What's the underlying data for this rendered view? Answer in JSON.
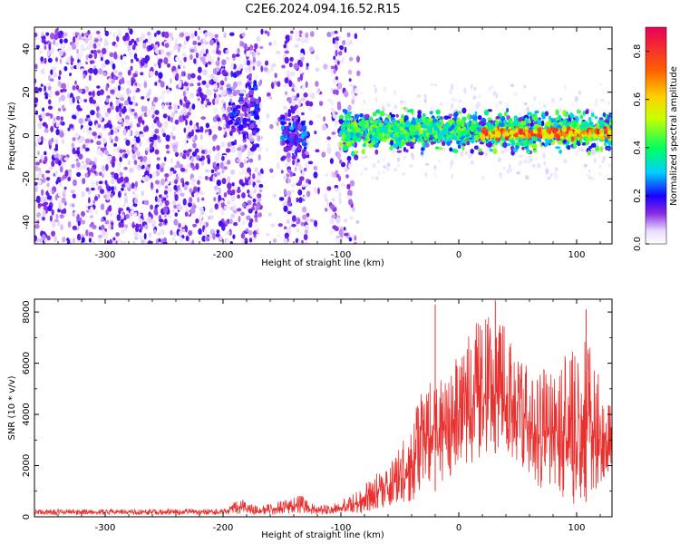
{
  "title": "C2E6.2024.094.16.52.R15",
  "chart_data": [
    {
      "type": "heatmap",
      "title": "",
      "xlabel": "Height of straight line (km)",
      "ylabel": "Frequency (Hz)",
      "xlim": [
        -360,
        130
      ],
      "ylim": [
        -50,
        50
      ],
      "xticks": [
        -300,
        -200,
        -100,
        0,
        100
      ],
      "yticks": [
        -40,
        -20,
        0,
        20,
        40
      ],
      "colorbar": {
        "label": "Normalized spectral amplitude",
        "range": [
          0.0,
          0.9
        ],
        "ticks": [
          "0.0",
          "0.2",
          "0.4",
          "0.6",
          "0.8"
        ],
        "colormap": "white-violet-blue-cyan-green-yellow-orange-red"
      },
      "features": [
        {
          "x_range": [
            -360,
            -100
          ],
          "freq_range": [
            -50,
            48
          ],
          "amplitude": 0.1,
          "desc": "broadband noise"
        },
        {
          "x_range": [
            -195,
            -170
          ],
          "freq_center": 12,
          "amplitude": 0.25
        },
        {
          "x_range": [
            -150,
            -130
          ],
          "freq_center": 0,
          "amplitude": 0.3
        },
        {
          "x_range": [
            -100,
            130
          ],
          "freq_center": 2,
          "amplitude": 0.5
        },
        {
          "x_range": [
            20,
            130
          ],
          "freq_center": 1,
          "amplitude": 0.85
        }
      ]
    },
    {
      "type": "line",
      "title": "",
      "xlabel": "Height of straight line (km)",
      "ylabel": "SNR (10 * v/v)",
      "xlim": [
        -360,
        130
      ],
      "ylim": [
        0,
        8500
      ],
      "xticks": [
        -300,
        -200,
        -100,
        0,
        100
      ],
      "yticks": [
        0,
        2000,
        4000,
        6000,
        8000
      ],
      "color": "#e8302e",
      "envelope": [
        {
          "x": -360,
          "low": 80,
          "high": 300
        },
        {
          "x": -300,
          "low": 80,
          "high": 300
        },
        {
          "x": -200,
          "low": 80,
          "high": 320
        },
        {
          "x": -185,
          "low": 100,
          "high": 700
        },
        {
          "x": -170,
          "low": 80,
          "high": 400
        },
        {
          "x": -135,
          "low": 100,
          "high": 900
        },
        {
          "x": -120,
          "low": 80,
          "high": 400
        },
        {
          "x": -100,
          "low": 100,
          "high": 600
        },
        {
          "x": -80,
          "low": 150,
          "high": 1300
        },
        {
          "x": -60,
          "low": 300,
          "high": 2200
        },
        {
          "x": -40,
          "low": 600,
          "high": 3400
        },
        {
          "x": -30,
          "low": 800,
          "high": 5800
        },
        {
          "x": -20,
          "low": 1000,
          "high": 5500
        },
        {
          "x": -10,
          "low": 1500,
          "high": 5200
        },
        {
          "x": 0,
          "low": 1800,
          "high": 6500
        },
        {
          "x": 15,
          "low": 2200,
          "high": 7600
        },
        {
          "x": 30,
          "low": 2500,
          "high": 8200
        },
        {
          "x": 45,
          "low": 2200,
          "high": 7000
        },
        {
          "x": 60,
          "low": 1500,
          "high": 5800
        },
        {
          "x": 75,
          "low": 800,
          "high": 5800
        },
        {
          "x": 90,
          "low": 500,
          "high": 6500
        },
        {
          "x": 105,
          "low": 400,
          "high": 7800
        },
        {
          "x": 115,
          "low": 1000,
          "high": 6000
        },
        {
          "x": 130,
          "low": 1500,
          "high": 4500
        }
      ],
      "spikes": [
        {
          "x": -20,
          "y": 8300
        },
        {
          "x": 31,
          "y": 8450
        },
        {
          "x": 108,
          "y": 8100
        }
      ]
    }
  ]
}
